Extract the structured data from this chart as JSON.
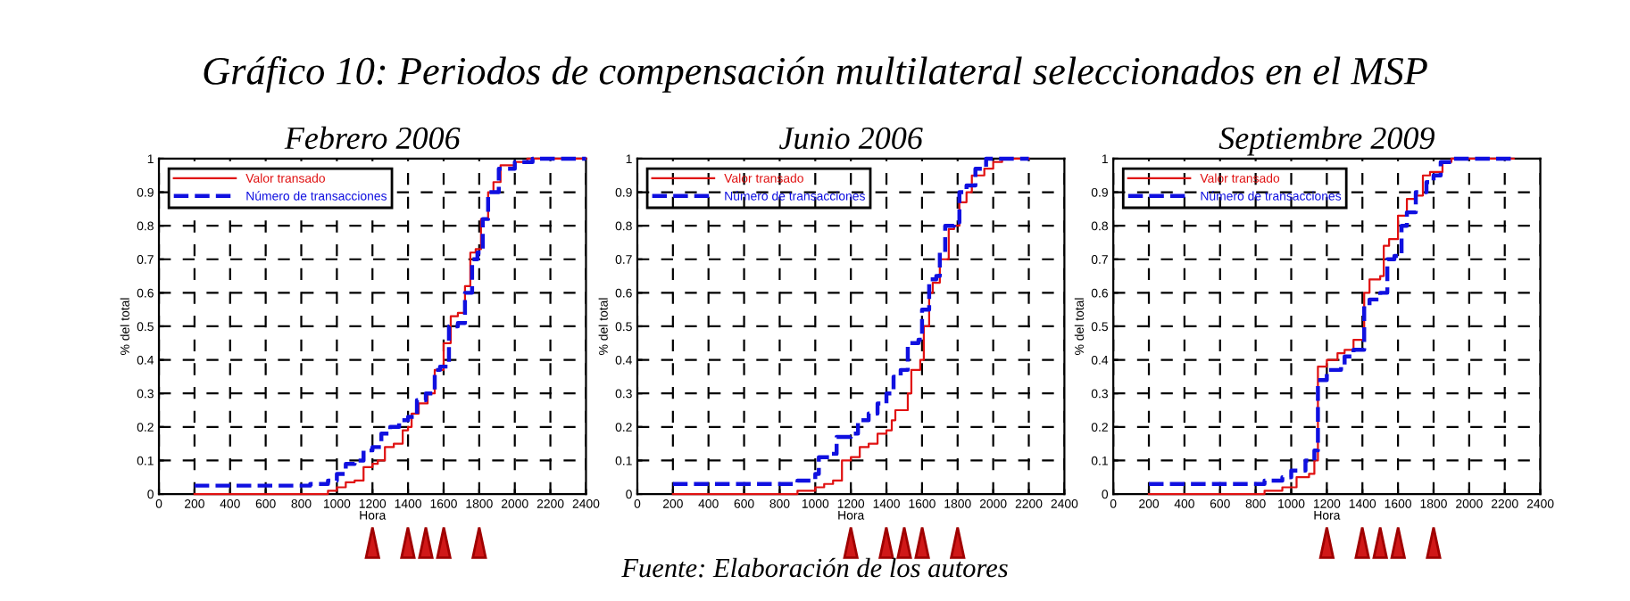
{
  "chart_data": [
    {
      "type": "step",
      "title": "Gráfico 10: Periodos de compensación multilateral seleccionados en el MSP",
      "subtitle": "Febrero 2006",
      "xlabel": "Hora",
      "ylabel": "% del total",
      "xlim": [
        0,
        2400
      ],
      "ylim": [
        0,
        1
      ],
      "xticks": [
        0,
        200,
        400,
        600,
        800,
        1000,
        1200,
        1400,
        1600,
        1800,
        2000,
        2200,
        2400
      ],
      "yticks": [
        0,
        0.1,
        0.2,
        0.3,
        0.4,
        0.5,
        0.6,
        0.7,
        0.8,
        0.9,
        1
      ],
      "grid": true,
      "legend": "top left",
      "series": [
        {
          "name": "Valor transado",
          "color": "#e01010",
          "line_style": "solid",
          "x": [
            200,
            930,
            950,
            1000,
            1050,
            1100,
            1150,
            1200,
            1230,
            1270,
            1320,
            1370,
            1400,
            1420,
            1460,
            1510,
            1550,
            1580,
            1600,
            1640,
            1680,
            1720,
            1750,
            1780,
            1810,
            1850,
            1880,
            1920,
            2000,
            2070,
            2400
          ],
          "values": [
            0,
            0,
            0.01,
            0.02,
            0.035,
            0.04,
            0.08,
            0.09,
            0.1,
            0.14,
            0.15,
            0.19,
            0.2,
            0.24,
            0.27,
            0.3,
            0.37,
            0.37,
            0.45,
            0.53,
            0.54,
            0.62,
            0.72,
            0.73,
            0.82,
            0.9,
            0.93,
            0.98,
            0.99,
            1,
            1
          ]
        },
        {
          "name": "Número de transacciones",
          "color": "#1010e0",
          "line_style": "dashed",
          "x": [
            200,
            800,
            850,
            950,
            1000,
            1050,
            1100,
            1150,
            1200,
            1250,
            1300,
            1350,
            1400,
            1450,
            1500,
            1550,
            1580,
            1630,
            1680,
            1720,
            1760,
            1790,
            1820,
            1850,
            1880,
            1910,
            2000,
            2100,
            2400
          ],
          "values": [
            0.025,
            0.025,
            0.03,
            0.04,
            0.06,
            0.09,
            0.1,
            0.13,
            0.14,
            0.18,
            0.2,
            0.22,
            0.23,
            0.28,
            0.3,
            0.37,
            0.38,
            0.5,
            0.51,
            0.6,
            0.7,
            0.72,
            0.82,
            0.9,
            0.9,
            0.97,
            0.99,
            1,
            1
          ]
        }
      ]
    },
    {
      "type": "step",
      "subtitle": "Junio 2006",
      "xlabel": "Hora",
      "ylabel": "% del total",
      "xlim": [
        0,
        2400
      ],
      "ylim": [
        0,
        1
      ],
      "xticks": [
        0,
        200,
        400,
        600,
        800,
        1000,
        1200,
        1400,
        1600,
        1800,
        2000,
        2200,
        2400
      ],
      "yticks": [
        0,
        0.1,
        0.2,
        0.3,
        0.4,
        0.5,
        0.6,
        0.7,
        0.8,
        0.9,
        1
      ],
      "grid": true,
      "legend": "top left",
      "annotations": [
        "Fuente: Elaboración de los autores"
      ],
      "series": [
        {
          "name": "Valor transado",
          "color": "#e01010",
          "line_style": "solid",
          "x": [
            200,
            850,
            900,
            1000,
            1050,
            1100,
            1150,
            1200,
            1250,
            1300,
            1350,
            1400,
            1430,
            1450,
            1520,
            1540,
            1590,
            1610,
            1640,
            1660,
            1700,
            1750,
            1780,
            1810,
            1850,
            1880,
            1950,
            2000,
            2050,
            2200
          ],
          "values": [
            0,
            0,
            0.01,
            0.02,
            0.03,
            0.04,
            0.1,
            0.11,
            0.14,
            0.15,
            0.18,
            0.19,
            0.22,
            0.25,
            0.3,
            0.37,
            0.4,
            0.5,
            0.6,
            0.63,
            0.7,
            0.79,
            0.8,
            0.87,
            0.9,
            0.95,
            0.97,
            0.99,
            1,
            1
          ]
        },
        {
          "name": "Número de transacciones",
          "color": "#1010e0",
          "line_style": "dashed",
          "x": [
            200,
            850,
            900,
            1000,
            1020,
            1080,
            1120,
            1200,
            1240,
            1300,
            1350,
            1400,
            1440,
            1480,
            1520,
            1580,
            1600,
            1640,
            1680,
            1700,
            1730,
            1780,
            1810,
            1850,
            1900,
            1960,
            2200
          ],
          "values": [
            0.03,
            0.03,
            0.04,
            0.06,
            0.11,
            0.12,
            0.17,
            0.18,
            0.22,
            0.24,
            0.27,
            0.3,
            0.35,
            0.37,
            0.45,
            0.46,
            0.55,
            0.64,
            0.65,
            0.72,
            0.8,
            0.81,
            0.9,
            0.92,
            0.97,
            1,
            1
          ]
        }
      ]
    },
    {
      "type": "step",
      "subtitle": "Septiembre 2009",
      "xlabel": "Hora",
      "ylabel": "% del total",
      "xlim": [
        0,
        2400
      ],
      "ylim": [
        0,
        1
      ],
      "xticks": [
        0,
        200,
        400,
        600,
        800,
        1000,
        1200,
        1400,
        1600,
        1800,
        2000,
        2200,
        2400
      ],
      "yticks": [
        0,
        0.1,
        0.2,
        0.3,
        0.4,
        0.5,
        0.6,
        0.7,
        0.8,
        0.9,
        1
      ],
      "grid": true,
      "legend": "top left",
      "series": [
        {
          "name": "Valor transado",
          "color": "#e01010",
          "line_style": "solid",
          "x": [
            200,
            780,
            850,
            950,
            1030,
            1100,
            1130,
            1150,
            1200,
            1260,
            1300,
            1350,
            1410,
            1440,
            1500,
            1520,
            1550,
            1600,
            1650,
            1700,
            1740,
            1780,
            1850,
            1900,
            2250
          ],
          "values": [
            0,
            0,
            0.01,
            0.02,
            0.05,
            0.06,
            0.1,
            0.38,
            0.4,
            0.42,
            0.43,
            0.46,
            0.6,
            0.64,
            0.65,
            0.74,
            0.76,
            0.83,
            0.88,
            0.89,
            0.95,
            0.96,
            0.99,
            1,
            1
          ]
        },
        {
          "name": "Número de transacciones",
          "color": "#1010e0",
          "line_style": "dashed",
          "x": [
            200,
            780,
            850,
            950,
            1000,
            1080,
            1130,
            1150,
            1200,
            1280,
            1300,
            1350,
            1410,
            1440,
            1500,
            1540,
            1580,
            1620,
            1650,
            1700,
            1760,
            1800,
            1840,
            1900,
            2250
          ],
          "values": [
            0.03,
            0.03,
            0.04,
            0.05,
            0.07,
            0.1,
            0.13,
            0.34,
            0.37,
            0.38,
            0.41,
            0.43,
            0.56,
            0.58,
            0.6,
            0.7,
            0.71,
            0.8,
            0.84,
            0.9,
            0.93,
            0.95,
            0.99,
            1,
            1
          ]
        }
      ]
    }
  ]
}
